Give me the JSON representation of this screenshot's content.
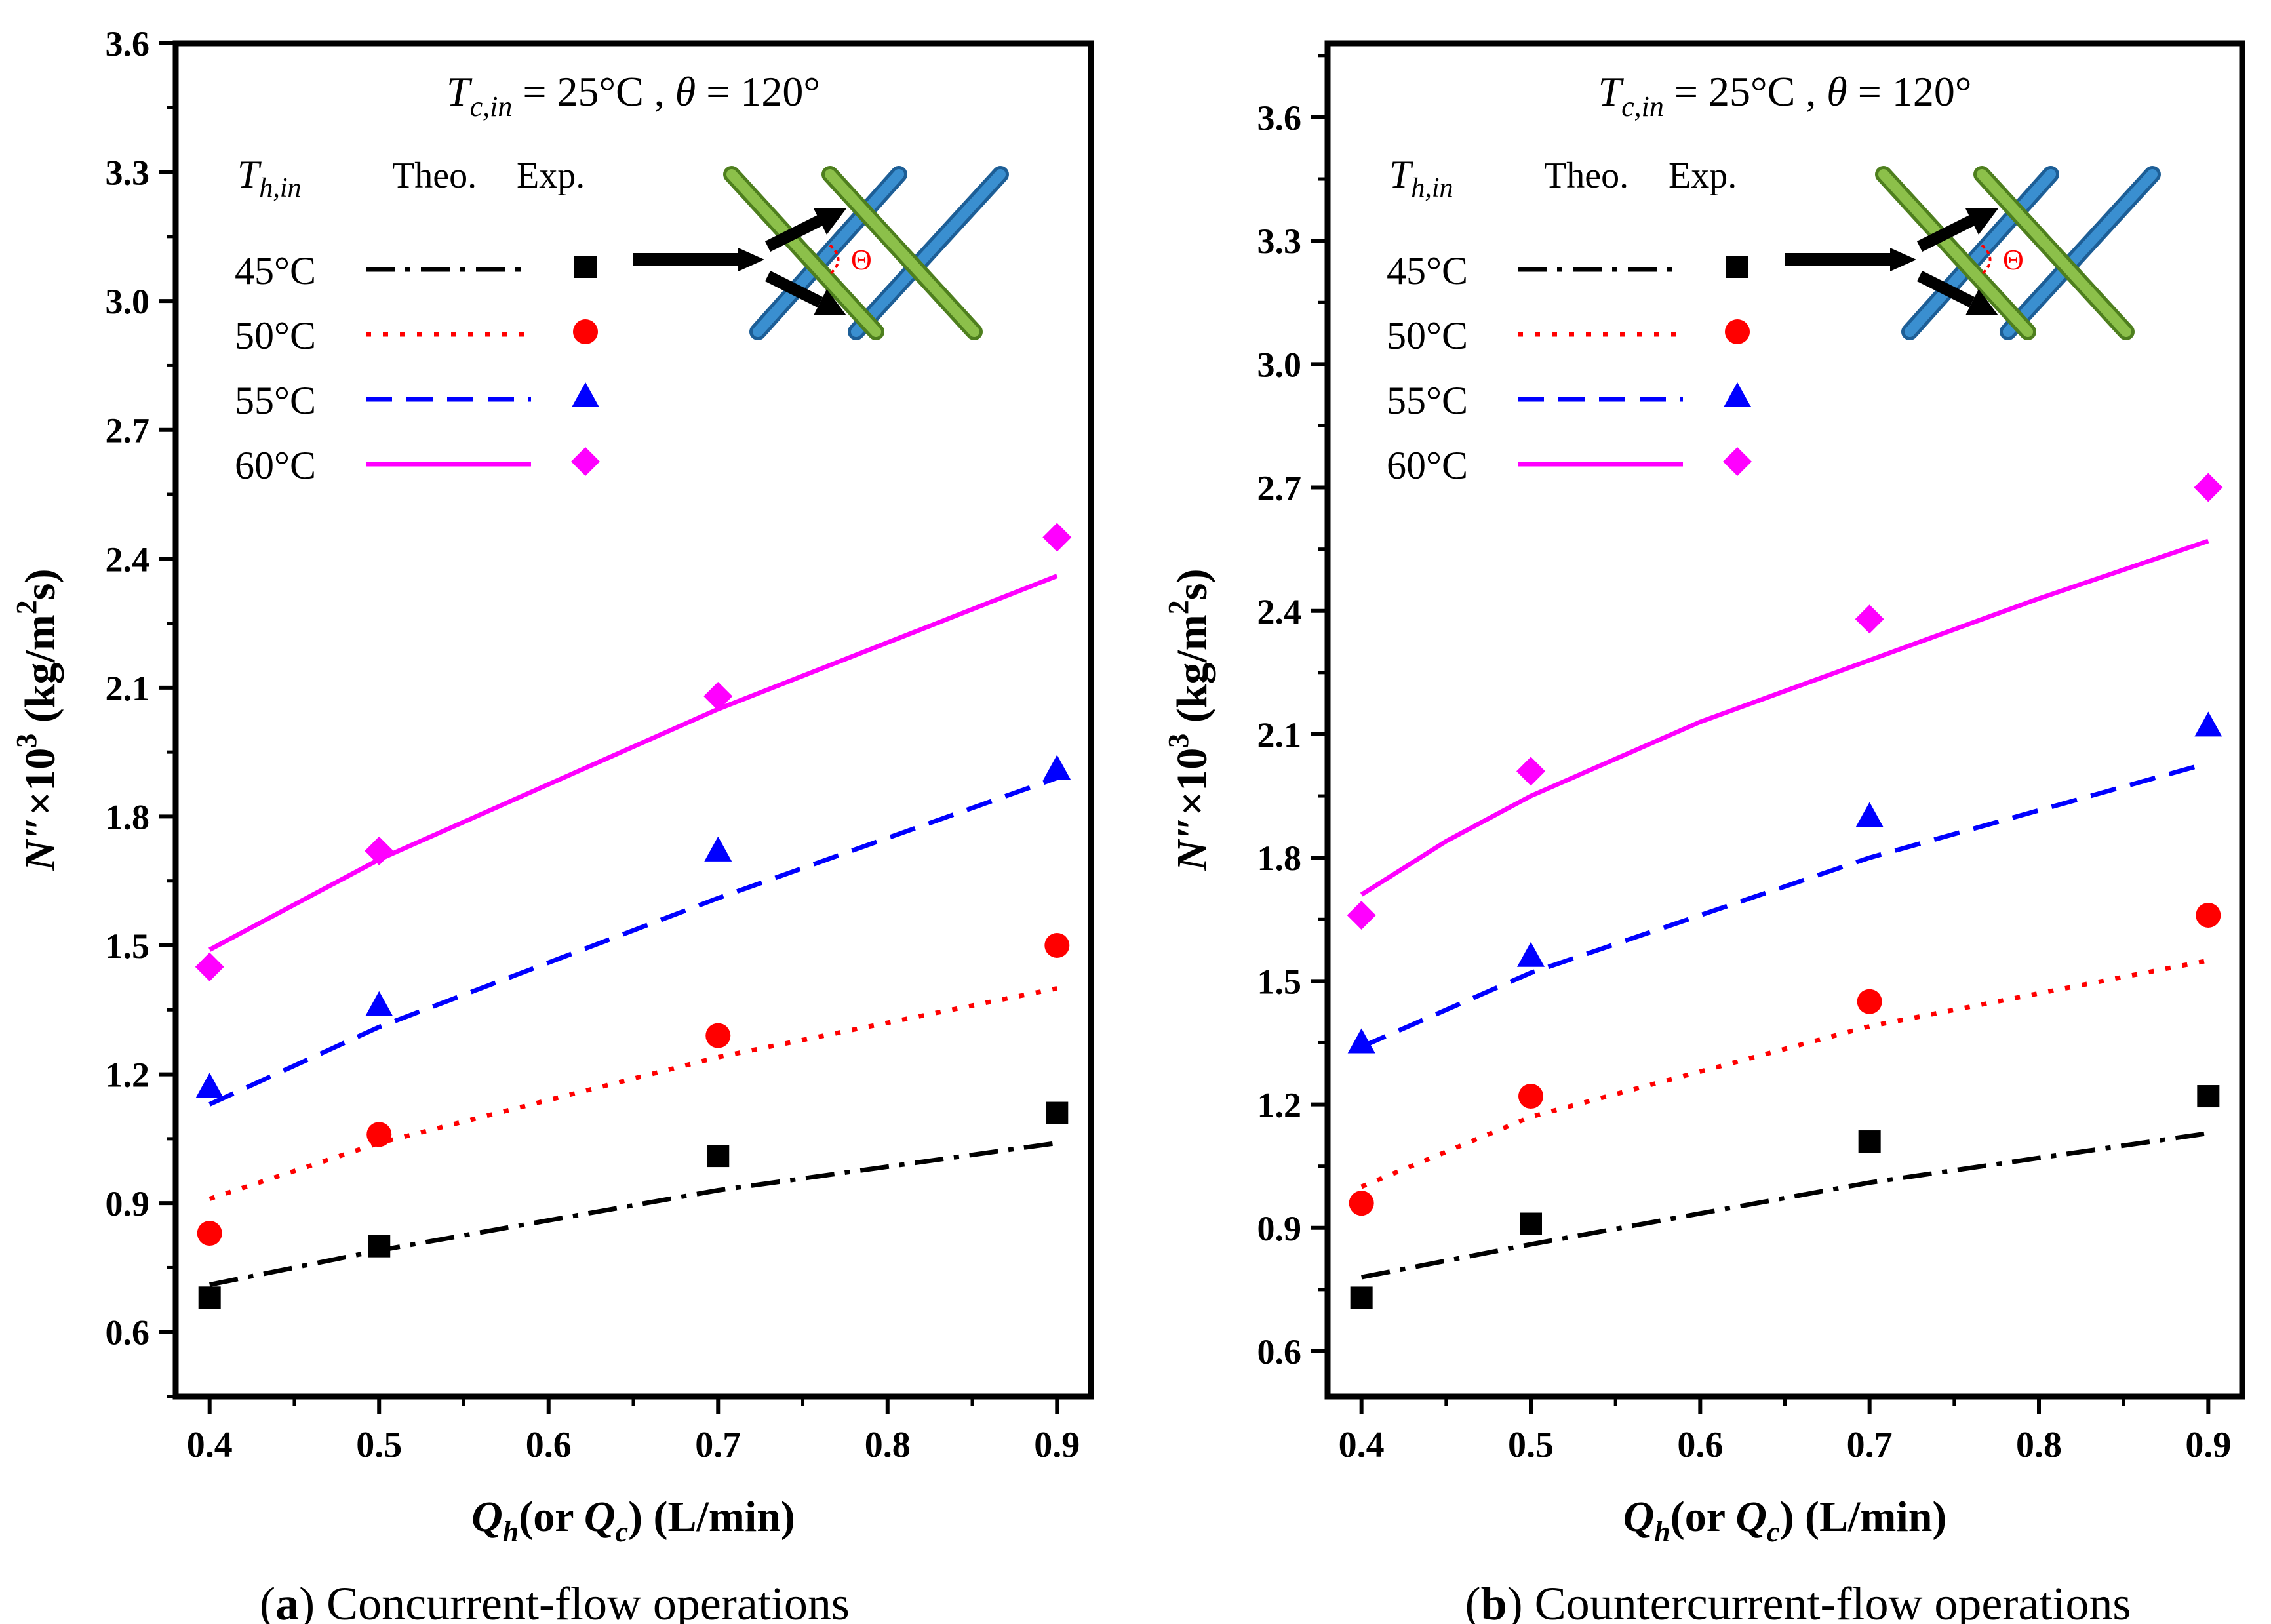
{
  "figure": {
    "panels": [
      {
        "letter": "a",
        "caption": "Concurrent-flow operations"
      },
      {
        "letter": "b",
        "caption": "Countercurrent-flow operations"
      }
    ],
    "header": {
      "tc_var": "T",
      "tc_sub": "c,in",
      "tc_eq": " = 25°C ,",
      "theta_var": "θ",
      "theta_eq": " = 120°"
    },
    "legend_head": {
      "t_var": "T",
      "t_sub": "h,in",
      "theo": "Theo.",
      "exp": "Exp."
    },
    "ylabel": {
      "n": "N″",
      "times": "×10",
      "exp": "3",
      "unit1": " (kg/m",
      "exp2": "2",
      "unit2": "s)"
    },
    "xlabel": {
      "q": "Q",
      "h": "h",
      "or": "(or ",
      "q2": "Q",
      "c": "c",
      "unit": ") (L/min)"
    },
    "inset": {
      "angle_symbol": "Θ"
    }
  },
  "styles": {
    "45°C": {
      "color": "#000000",
      "marker": "square",
      "line": "dash-dot"
    },
    "50°C": {
      "color": "#ff0000",
      "marker": "circle",
      "line": "dotted"
    },
    "55°C": {
      "color": "#0000ff",
      "marker": "triangle",
      "line": "dashed"
    },
    "60°C": {
      "color": "#ff00ff",
      "marker": "diamond",
      "line": "solid"
    }
  },
  "chart_data": [
    {
      "type": "line",
      "title": "",
      "xlabel": "Qh(or Qc) (L/min)",
      "ylabel": "N″×10^3 (kg/m^2s)",
      "xlim": [
        0.38,
        0.92
      ],
      "ylim": [
        0.45,
        3.6
      ],
      "xticks": [
        "0.4",
        "0.5",
        "0.6",
        "0.7",
        "0.8",
        "0.9"
      ],
      "yticks": [
        "0.6",
        "0.9",
        "1.2",
        "1.5",
        "1.8",
        "2.1",
        "2.4",
        "2.7",
        "3.0",
        "3.3",
        "3.6"
      ],
      "grid": false,
      "legend": "top-left",
      "series": [
        {
          "name": "45°C",
          "exp_x": [
            0.4,
            0.5,
            0.7,
            0.9
          ],
          "exp_y": [
            0.68,
            0.8,
            1.01,
            1.11
          ],
          "theo_x": [
            0.4,
            0.5,
            0.7,
            0.9
          ],
          "theo_y": [
            0.71,
            0.79,
            0.93,
            1.04
          ]
        },
        {
          "name": "50°C",
          "exp_x": [
            0.4,
            0.5,
            0.7,
            0.9
          ],
          "exp_y": [
            0.83,
            1.06,
            1.29,
            1.5
          ],
          "theo_x": [
            0.4,
            0.5,
            0.7,
            0.9
          ],
          "theo_y": [
            0.91,
            1.04,
            1.24,
            1.4
          ]
        },
        {
          "name": "55°C",
          "exp_x": [
            0.4,
            0.5,
            0.7,
            0.9
          ],
          "exp_y": [
            1.17,
            1.36,
            1.72,
            1.91
          ],
          "theo_x": [
            0.4,
            0.5,
            0.7,
            0.9
          ],
          "theo_y": [
            1.13,
            1.31,
            1.61,
            1.89
          ]
        },
        {
          "name": "60°C",
          "exp_x": [
            0.4,
            0.5,
            0.7,
            0.9
          ],
          "exp_y": [
            1.45,
            1.72,
            2.08,
            2.45
          ],
          "theo_x": [
            0.4,
            0.5,
            0.7,
            0.9
          ],
          "theo_y": [
            1.49,
            1.7,
            2.05,
            2.36
          ]
        }
      ]
    },
    {
      "type": "line",
      "title": "",
      "xlabel": "Qh(or Qc) (L/min)",
      "ylabel": "N″×10^3 (kg/m^2s)",
      "xlim": [
        0.38,
        0.92
      ],
      "ylim": [
        0.49,
        3.78
      ],
      "xticks": [
        "0.4",
        "0.5",
        "0.6",
        "0.7",
        "0.8",
        "0.9"
      ],
      "yticks": [
        "0.6",
        "0.9",
        "1.2",
        "1.5",
        "1.8",
        "2.1",
        "2.4",
        "2.7",
        "3.0",
        "3.3",
        "3.6"
      ],
      "grid": false,
      "legend": "top-left",
      "series": [
        {
          "name": "45°C",
          "exp_x": [
            0.4,
            0.5,
            0.7,
            0.9
          ],
          "exp_y": [
            0.73,
            0.91,
            1.11,
            1.22
          ],
          "theo_x": [
            0.4,
            0.5,
            0.7,
            0.9
          ],
          "theo_y": [
            0.78,
            0.86,
            1.01,
            1.13
          ]
        },
        {
          "name": "50°C",
          "exp_x": [
            0.4,
            0.5,
            0.7,
            0.9
          ],
          "exp_y": [
            0.96,
            1.22,
            1.45,
            1.66
          ],
          "theo_x": [
            0.4,
            0.5,
            0.7,
            0.9
          ],
          "theo_y": [
            1.0,
            1.17,
            1.39,
            1.55
          ]
        },
        {
          "name": "55°C",
          "exp_x": [
            0.4,
            0.5,
            0.7,
            0.9
          ],
          "exp_y": [
            1.35,
            1.56,
            1.9,
            2.12
          ],
          "theo_x": [
            0.4,
            0.5,
            0.7,
            0.9
          ],
          "theo_y": [
            1.34,
            1.52,
            1.8,
            2.03
          ]
        },
        {
          "name": "60°C",
          "exp_x": [
            0.4,
            0.5,
            0.7,
            0.9
          ],
          "exp_y": [
            1.66,
            2.01,
            2.38,
            2.7
          ],
          "theo_x": [
            0.4,
            0.45,
            0.5,
            0.6,
            0.7,
            0.8,
            0.9
          ],
          "theo_y": [
            1.71,
            1.84,
            1.95,
            2.13,
            2.28,
            2.43,
            2.57
          ]
        }
      ]
    }
  ]
}
